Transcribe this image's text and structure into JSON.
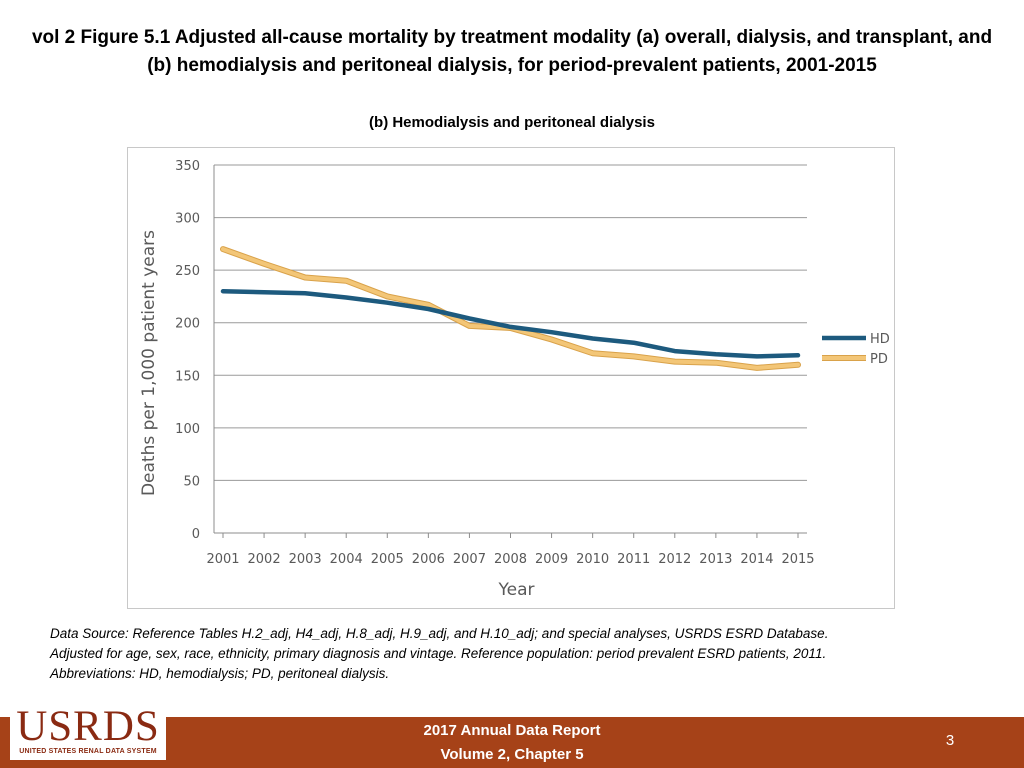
{
  "slide": {
    "title": "vol 2 Figure 5.1 Adjusted all-cause mortality by treatment modality (a) overall, dialysis, and transplant, and (b) hemodialysis and peritoneal dialysis, for period-prevalent patients, 2001-2015",
    "subtitle": "(b) Hemodialysis and peritoneal dialysis"
  },
  "chart_data": {
    "type": "line",
    "title": "(b) Hemodialysis and peritoneal dialysis",
    "xlabel": "Year",
    "ylabel": "Deaths per 1,000 patient years",
    "categories": [
      "2001",
      "2002",
      "2003",
      "2004",
      "2005",
      "2006",
      "2007",
      "2008",
      "2009",
      "2010",
      "2011",
      "2012",
      "2013",
      "2014",
      "2015"
    ],
    "yticks": [
      0,
      50,
      100,
      150,
      200,
      250,
      300,
      350
    ],
    "ylim": [
      0,
      350
    ],
    "grid": true,
    "legend_position": "right",
    "series": [
      {
        "name": "HD",
        "color": "#1d5a7e",
        "values": [
          230,
          229,
          228,
          224,
          219,
          213,
          204,
          196,
          191,
          185,
          181,
          173,
          170,
          168,
          169
        ]
      },
      {
        "name": "PD",
        "color": "#f3c677",
        "values": [
          270,
          256,
          243,
          240,
          225,
          217,
          197,
          195,
          184,
          171,
          168,
          163,
          162,
          157,
          160
        ]
      }
    ]
  },
  "footnotes": [
    "Data Source: Reference Tables H.2_adj, H4_adj, H.8_adj, H.9_adj, and H.10_adj; and special analyses, USRDS ESRD Database.",
    "Adjusted for age, sex, race, ethnicity, primary diagnosis and vintage. Reference population: period prevalent ESRD patients, 2011.",
    "Abbreviations: HD, hemodialysis; PD, peritoneal dialysis."
  ],
  "footer": {
    "logo_text": "USRDS",
    "logo_subtext": "UNITED STATES RENAL DATA SYSTEM",
    "report_line1": "2017 Annual Data Report",
    "report_line2": "Volume 2, Chapter 5",
    "page_number": "3"
  },
  "colors": {
    "footer_bar": "#a64218",
    "hd_line": "#1d5a7e",
    "pd_line": "#f3c677"
  }
}
